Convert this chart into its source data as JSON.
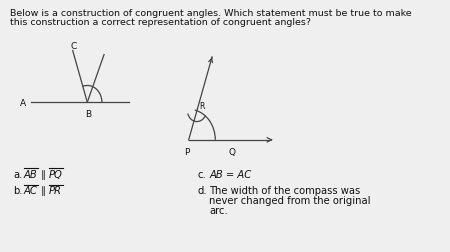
{
  "q1": "Below is a construction of congruent angles. Which statement must be true to make",
  "q2": "this construction a correct representation of congruent angles?",
  "bg": "#efefef",
  "lc": "#444444",
  "tc": "#111111",
  "ans_d_text": "The width of the compass was\nnever changed from the original\narc."
}
